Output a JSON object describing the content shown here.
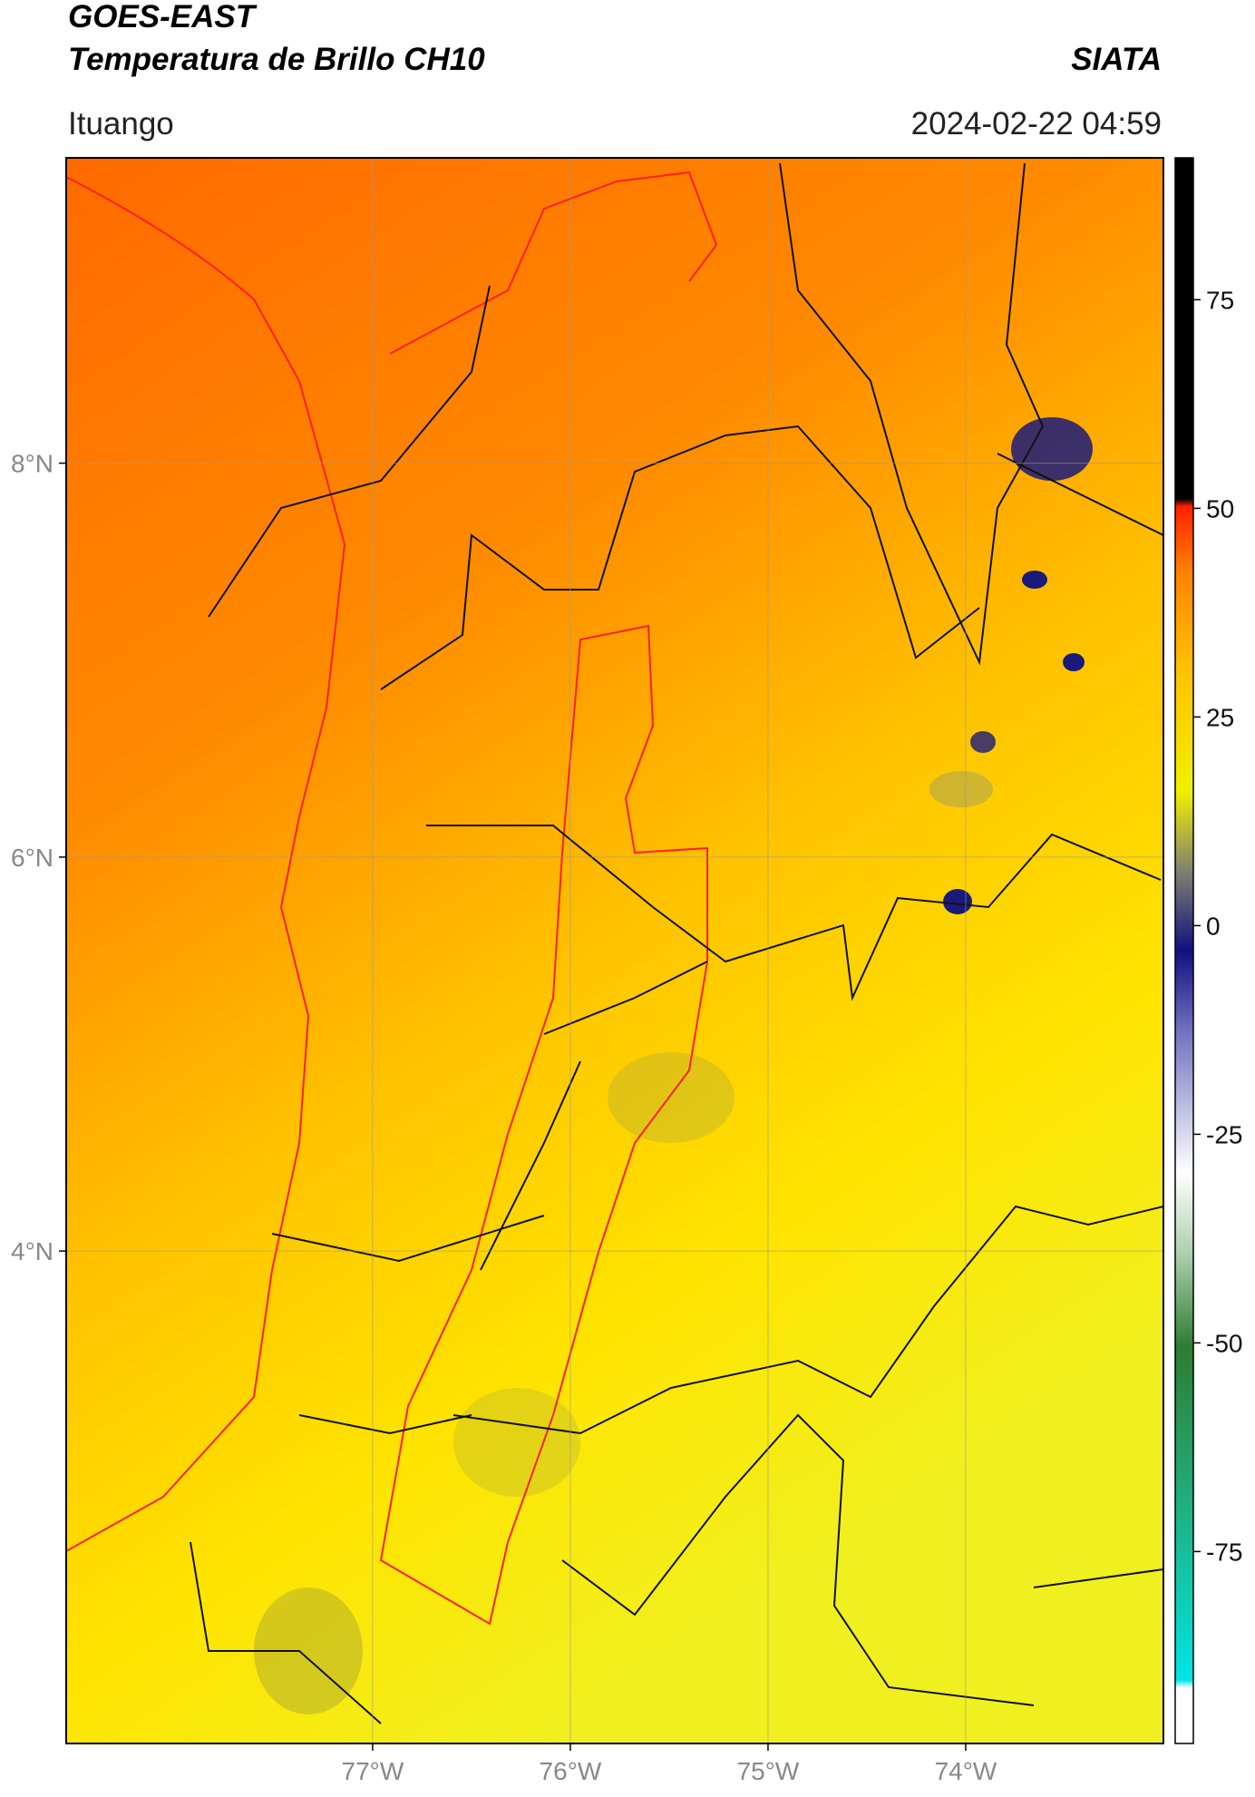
{
  "header": {
    "title": "GOES-EAST",
    "subtitle": "Temperatura de Brillo CH10",
    "source": "SIATA",
    "location": "Ituango",
    "datetime": "2024-02-22 04:59"
  },
  "map": {
    "lonlim": [
      -78.55,
      -73.0
    ],
    "latlim": [
      1.5,
      9.55
    ],
    "lon_ticks": [
      {
        "value": -77,
        "label": "77°W"
      },
      {
        "value": -76,
        "label": "76°W"
      },
      {
        "value": -75,
        "label": "75°W"
      },
      {
        "value": -74,
        "label": "74°W"
      }
    ],
    "lat_ticks": [
      {
        "value": 8,
        "label": "8°N"
      },
      {
        "value": 6,
        "label": "6°N"
      },
      {
        "value": 4,
        "label": "4°N"
      }
    ],
    "grid": true
  },
  "colorbar": {
    "range": [
      -98,
      92
    ],
    "ticks": [
      75,
      50,
      25,
      0,
      -25,
      -50,
      -75
    ]
  }
}
